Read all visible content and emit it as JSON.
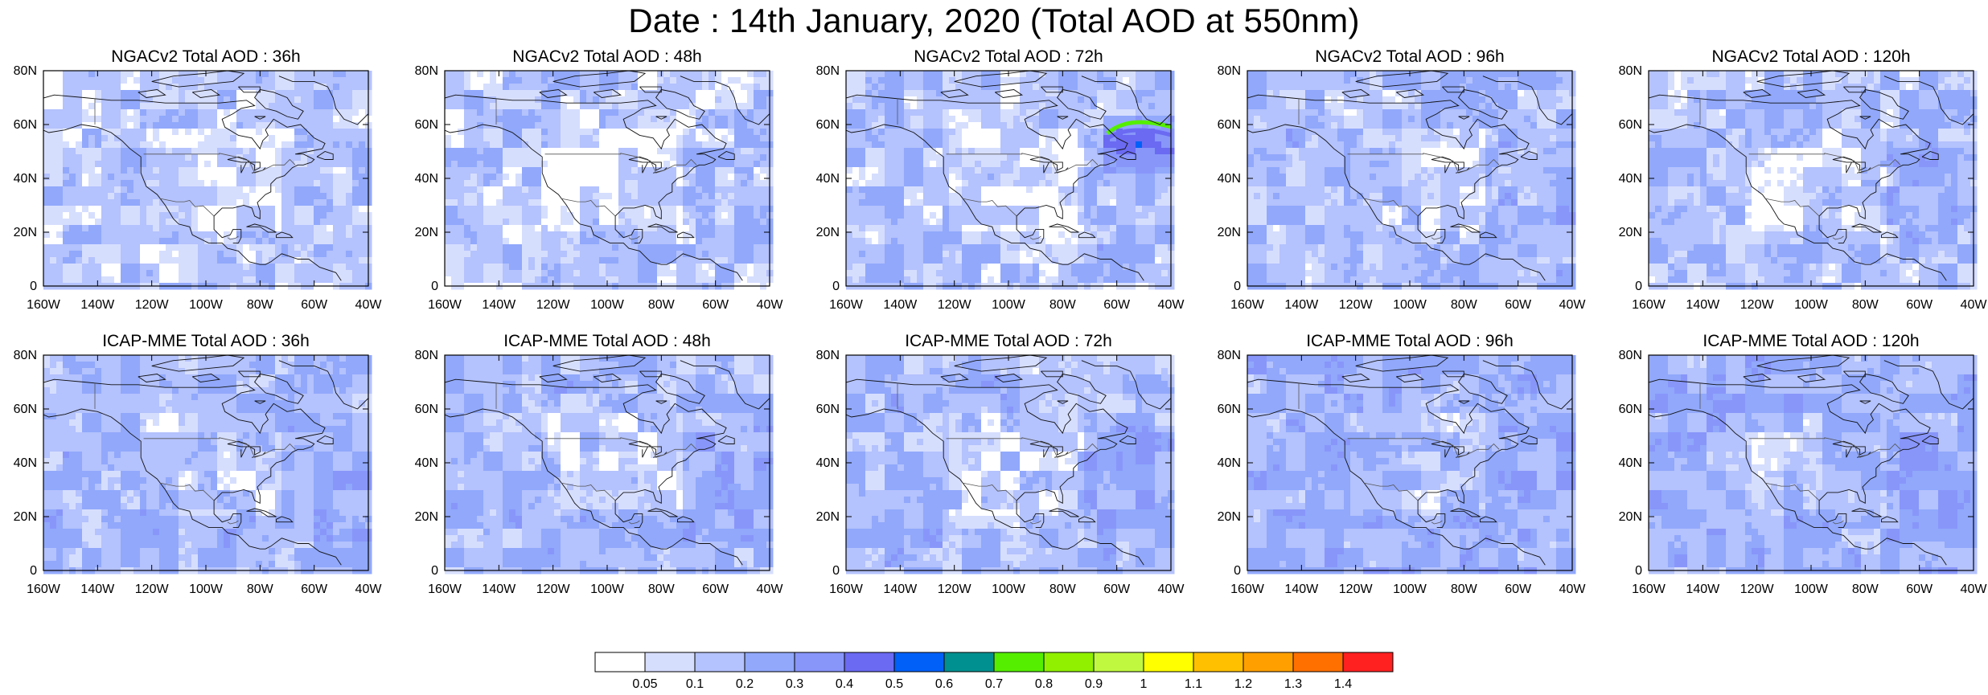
{
  "title": "Date : 14th January, 2020 (Total AOD at 550nm)",
  "panels": [
    {
      "title": "NGACv2 Total AOD : 36h",
      "plume": 0,
      "base": 0.12
    },
    {
      "title": "NGACv2 Total AOD : 48h",
      "plume": 0,
      "base": 0.12
    },
    {
      "title": "NGACv2 Total AOD : 72h",
      "plume": 1,
      "base": 0.13
    },
    {
      "title": "NGACv2 Total AOD : 96h",
      "plume": 0,
      "base": 0.16
    },
    {
      "title": "NGACv2 Total AOD : 120h",
      "plume": 0,
      "base": 0.15
    },
    {
      "title": "ICAP-MME Total AOD : 36h",
      "plume": 0,
      "base": 0.17
    },
    {
      "title": "ICAP-MME Total AOD : 48h",
      "plume": 0,
      "base": 0.17
    },
    {
      "title": "ICAP-MME Total AOD : 72h",
      "plume": 0,
      "base": 0.17
    },
    {
      "title": "ICAP-MME Total AOD : 96h",
      "plume": 0,
      "base": 0.2
    },
    {
      "title": "ICAP-MME Total AOD : 120h",
      "plume": 0,
      "base": 0.2
    }
  ],
  "map": {
    "lon_range": [
      -160,
      -40
    ],
    "lat_range": [
      0,
      80
    ],
    "lon_ticks": [
      "160W",
      "140W",
      "120W",
      "100W",
      "80W",
      "60W",
      "40W"
    ],
    "lat_ticks": [
      "0",
      "20N",
      "40N",
      "60N",
      "80N"
    ]
  },
  "colorbar": {
    "colors": [
      "#ffffff",
      "#d6defe",
      "#b4c2fd",
      "#91a8fb",
      "#8896fa",
      "#6a6af2",
      "#0060f8",
      "#009090",
      "#55ee00",
      "#90f000",
      "#c0f840",
      "#ffff00",
      "#ffc000",
      "#ffa000",
      "#ff7000",
      "#ff2020"
    ],
    "labels": [
      "0.05",
      "0.1",
      "0.2",
      "0.3",
      "0.4",
      "0.5",
      "0.6",
      "0.7",
      "0.8",
      "0.9",
      "1",
      "1.1",
      "1.2",
      "1.3",
      "1.4"
    ]
  }
}
